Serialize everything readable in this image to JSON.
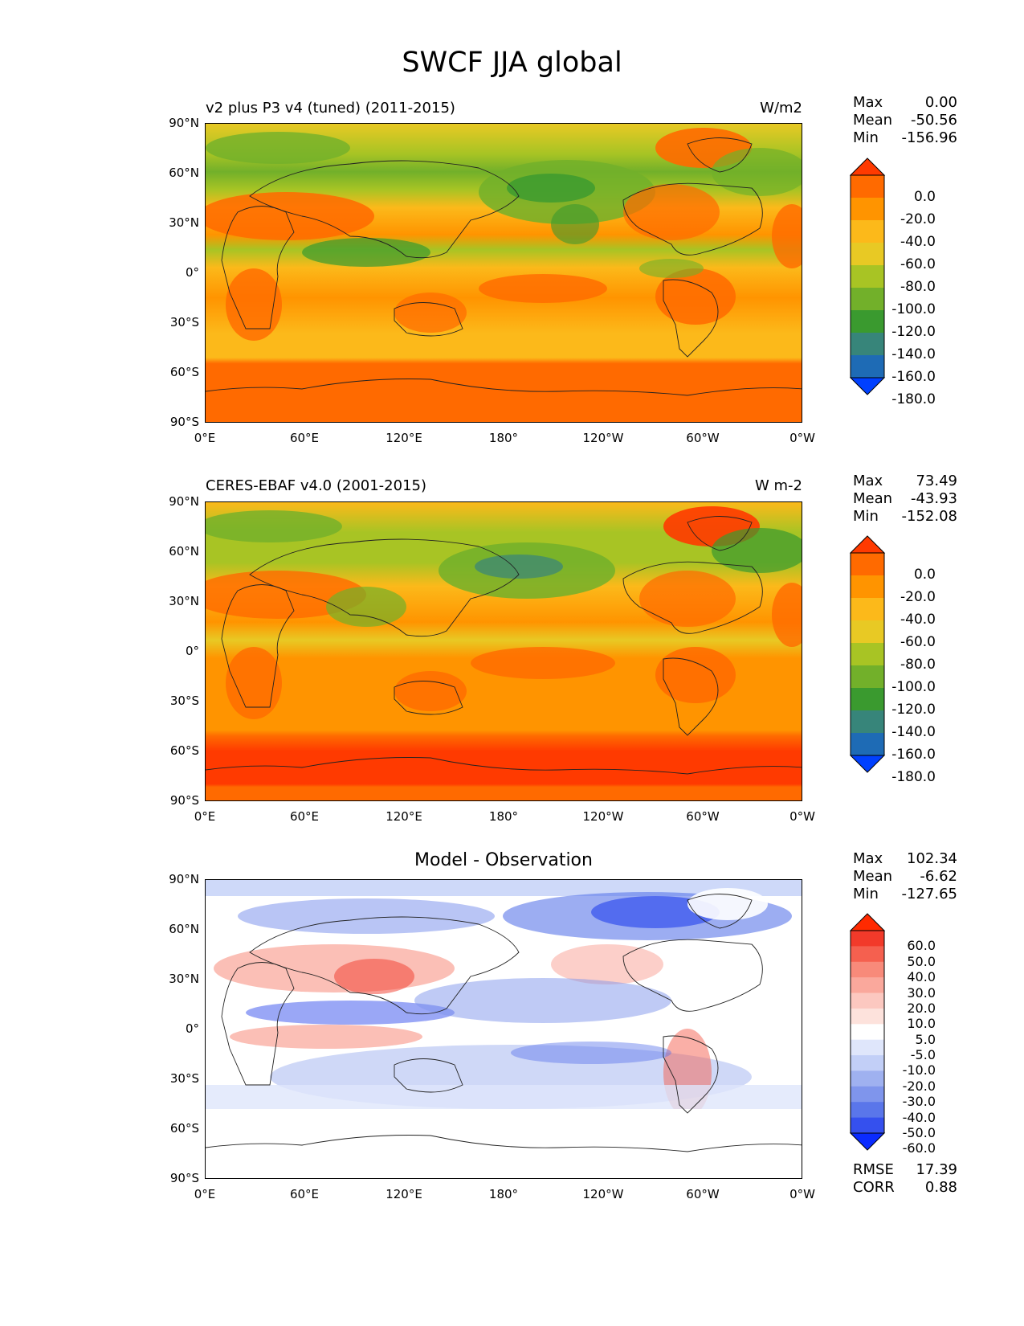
{
  "title": "SWCF JJA global",
  "panels": [
    {
      "id": "model",
      "title_left": "v2 plus P3 v4 (tuned) (2011-2015)",
      "title_right": "W/m2",
      "stats": [
        {
          "key": "Max",
          "value": "0.00"
        },
        {
          "key": "Mean",
          "value": "-50.56"
        },
        {
          "key": "Min",
          "value": "-156.96"
        }
      ],
      "colorbar_labels": [
        "0.0",
        "-20.0",
        "-40.0",
        "-60.0",
        "-80.0",
        "-100.0",
        "-120.0",
        "-140.0",
        "-160.0",
        "-180.0"
      ],
      "colorbar_colors": [
        "#ff3a00",
        "#ff6a00",
        "#ff9400",
        "#fcb91a",
        "#e8c924",
        "#a8c424",
        "#72b02a",
        "#3a9a2f",
        "#37857a",
        "#1e6bb5",
        "#0040ff"
      ]
    },
    {
      "id": "obs",
      "title_left": "CERES-EBAF v4.0 (2001-2015)",
      "title_right": "W m-2",
      "stats": [
        {
          "key": "Max",
          "value": "73.49"
        },
        {
          "key": "Mean",
          "value": "-43.93"
        },
        {
          "key": "Min",
          "value": "-152.08"
        }
      ],
      "colorbar_labels": [
        "0.0",
        "-20.0",
        "-40.0",
        "-60.0",
        "-80.0",
        "-100.0",
        "-120.0",
        "-140.0",
        "-160.0",
        "-180.0"
      ],
      "colorbar_colors": [
        "#ff3a00",
        "#ff6a00",
        "#ff9400",
        "#fcb91a",
        "#e8c924",
        "#a8c424",
        "#72b02a",
        "#3a9a2f",
        "#37857a",
        "#1e6bb5",
        "#0040ff"
      ]
    },
    {
      "id": "diff",
      "title_center": "Model - Observation",
      "stats": [
        {
          "key": "Max",
          "value": "102.34"
        },
        {
          "key": "Mean",
          "value": "-6.62"
        },
        {
          "key": "Min",
          "value": "-127.65"
        }
      ],
      "colorbar_labels": [
        "60.0",
        "50.0",
        "40.0",
        "30.0",
        "20.0",
        "10.0",
        "5.0",
        "-5.0",
        "-10.0",
        "-20.0",
        "-30.0",
        "-40.0",
        "-50.0",
        "-60.0"
      ],
      "colorbar_colors": [
        "#ff2a00",
        "#f23a2a",
        "#f5604f",
        "#f88a7a",
        "#faa89c",
        "#fcc8c0",
        "#fde2dc",
        "#ffffff",
        "#dfe6fb",
        "#c2cff7",
        "#9fb1f0",
        "#7f95ec",
        "#5a76ea",
        "#3550ee",
        "#0a2bff"
      ],
      "extra_stats": [
        {
          "key": "RMSE",
          "value": "17.39"
        },
        {
          "key": "CORR",
          "value": "0.88"
        }
      ]
    }
  ],
  "lat_ticks": [
    "90°N",
    "60°N",
    "30°N",
    "0°",
    "30°S",
    "60°S",
    "90°S"
  ],
  "lon_ticks": [
    "0°E",
    "60°E",
    "120°E",
    "180°",
    "120°W",
    "60°W",
    "0°W"
  ]
}
